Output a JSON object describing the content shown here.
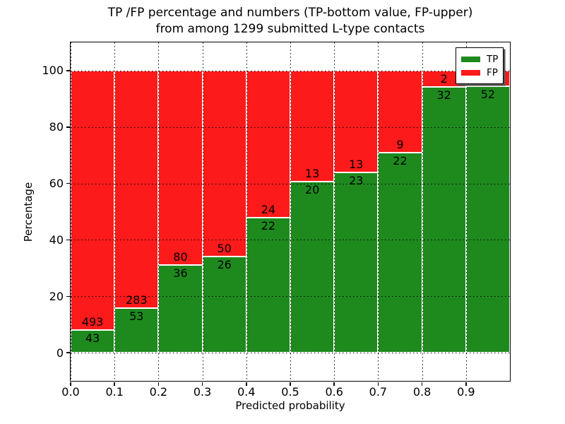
{
  "figure": {
    "title_line1": "TP /FP percentage and numbers (TP-bottom value, FP-upper)",
    "title_line2": "from among 1299 submitted L-type contacts",
    "background": "#ffffff"
  },
  "chart_data": {
    "type": "bar",
    "stacked": true,
    "orientation": "vertical",
    "title": "TP /FP percentage and numbers (TP-bottom value, FP-upper) from among 1299 submitted L-type contacts",
    "xlabel": "Predicted probability",
    "ylabel": "Percentage",
    "xlim": [
      0.0,
      1.0
    ],
    "ylim": [
      -10,
      110
    ],
    "x_ticks": [
      0.0,
      0.1,
      0.2,
      0.3,
      0.4,
      0.5,
      0.6,
      0.7,
      0.8,
      0.9
    ],
    "x_tick_labels": [
      "0.0",
      "0.1",
      "0.2",
      "0.3",
      "0.4",
      "0.5",
      "0.6",
      "0.7",
      "0.8",
      "0.9"
    ],
    "y_ticks": [
      0,
      20,
      40,
      60,
      80,
      100
    ],
    "y_tick_labels": [
      "0",
      "20",
      "40",
      "60",
      "80",
      "100"
    ],
    "grid": true,
    "grid_style": "dotted",
    "bar_width": 0.1,
    "total_contacts_in_title": 1299,
    "colors": {
      "tp": "#1e8a1e",
      "fp": "#fc1a1a",
      "bar_edge": "#ffffff",
      "grid": "#000000"
    },
    "legend": {
      "position": "upper right",
      "entries": [
        {
          "label": "TP",
          "color": "#1e8a1e"
        },
        {
          "label": "FP",
          "color": "#fc1a1a"
        }
      ]
    },
    "bars": [
      {
        "x_start": 0.0,
        "tp_count": 43,
        "fp_count": 493,
        "tp_label": "43",
        "fp_label": "493",
        "tp_percent": 8.02,
        "fp_percent": 91.98
      },
      {
        "x_start": 0.1,
        "tp_count": 53,
        "fp_count": 283,
        "tp_label": "53",
        "fp_label": "283",
        "tp_percent": 15.77,
        "fp_percent": 84.23
      },
      {
        "x_start": 0.2,
        "tp_count": 36,
        "fp_count": 80,
        "tp_label": "36",
        "fp_label": "80",
        "tp_percent": 31.03,
        "fp_percent": 68.97
      },
      {
        "x_start": 0.3,
        "tp_count": 26,
        "fp_count": 50,
        "tp_label": "26",
        "fp_label": "50",
        "tp_percent": 34.21,
        "fp_percent": 65.79
      },
      {
        "x_start": 0.4,
        "tp_count": 22,
        "fp_count": 24,
        "tp_label": "22",
        "fp_label": "24",
        "tp_percent": 47.83,
        "fp_percent": 52.17
      },
      {
        "x_start": 0.5,
        "tp_count": 20,
        "fp_count": 13,
        "tp_label": "20",
        "fp_label": "13",
        "tp_percent": 60.61,
        "fp_percent": 39.39
      },
      {
        "x_start": 0.6,
        "tp_count": 23,
        "fp_count": 13,
        "tp_label": "23",
        "fp_label": "13",
        "tp_percent": 63.89,
        "fp_percent": 36.11
      },
      {
        "x_start": 0.7,
        "tp_count": 22,
        "fp_count": 9,
        "tp_label": "22",
        "fp_label": "9",
        "tp_percent": 70.97,
        "fp_percent": 29.03
      },
      {
        "x_start": 0.8,
        "tp_count": 32,
        "fp_count": 2,
        "tp_label": "32",
        "fp_label": "2",
        "tp_percent": 94.12,
        "fp_percent": 5.88
      },
      {
        "x_start": 0.9,
        "tp_count": 52,
        "fp_count": null,
        "tp_label": "52",
        "fp_label": "",
        "fp_label_hidden_behind_legend": true,
        "tp_percent": 94.55,
        "fp_percent": 5.45
      }
    ]
  }
}
